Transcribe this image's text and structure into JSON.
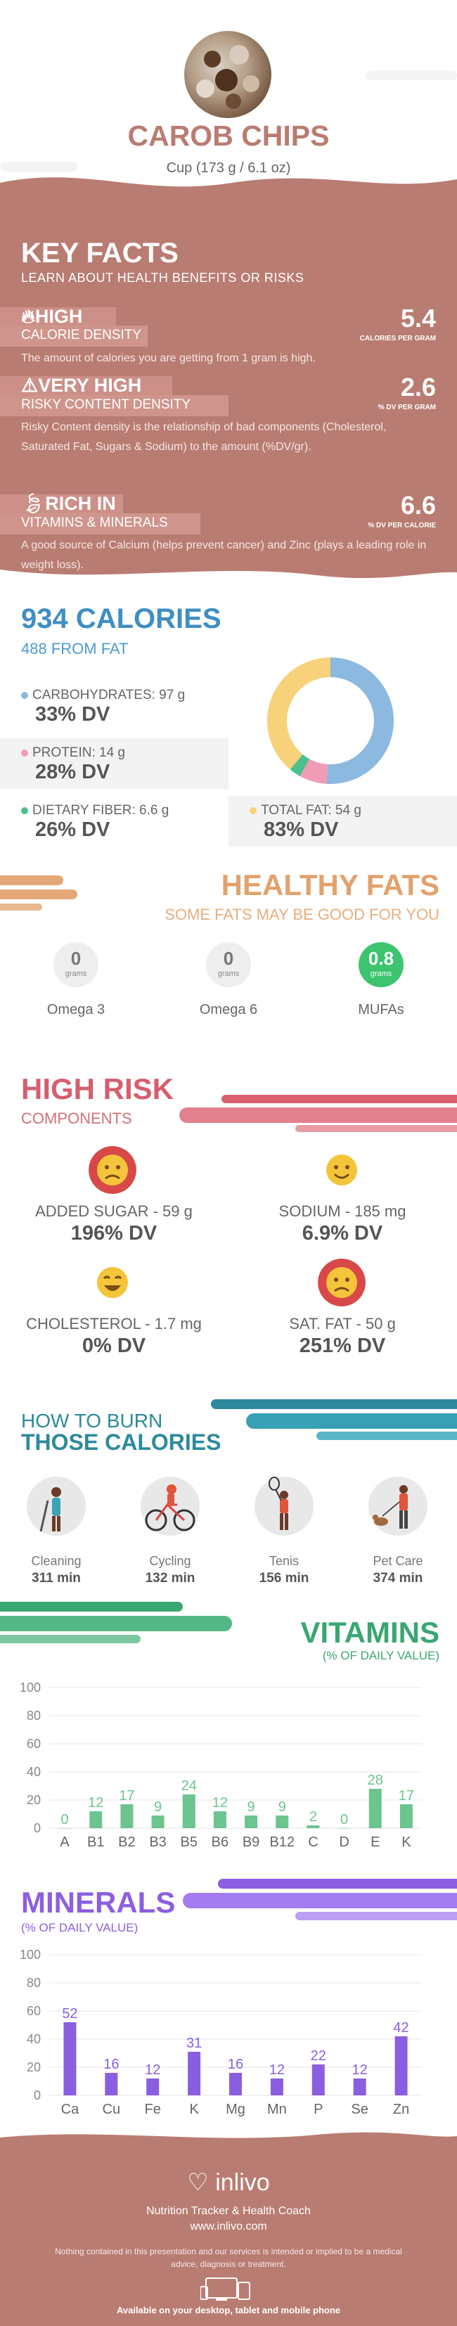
{
  "header": {
    "title": "CAROB CHIPS",
    "serving": "Cup (173 g / 6.1 oz)"
  },
  "key_facts": {
    "title": "KEY FACTS",
    "subtitle": "LEARN ABOUT HEALTH BENEFITS OR RISKS",
    "facts": [
      {
        "label": "HIGH",
        "sub": "CALORIE DENSITY",
        "value": "5.4",
        "unit": "CALORIES PER GRAM",
        "desc": "The amount of calories you are getting from 1 gram is high.",
        "icon": "flame-icon"
      },
      {
        "label": "VERY HIGH",
        "sub": "RISKY CONTENT DENSITY",
        "value": "2.6",
        "unit": "% DV PER GRAM",
        "desc": "Risky Content density is the relationship of bad components (Cholesterol, Saturated Fat, Sugars & Sodium) to the amount (%DV/gr).",
        "icon": "warning-icon"
      },
      {
        "label": "RICH  IN",
        "sub": "VITAMINS & MINERALS",
        "value": "6.6",
        "unit": "% DV PER CALORIE",
        "desc": "A good source of Calcium (helps prevent cancer) and Zinc (plays a leading role in weight loss).",
        "icon": "leaf-icon"
      }
    ]
  },
  "calories": {
    "title": "934 CALORIES",
    "from_fat": "488 FROM FAT",
    "nutrients": [
      {
        "label": "CARBOHYDRATES: 97 g",
        "dv": "33% DV",
        "color": "#8bb9e0"
      },
      {
        "label": "PROTEIN: 14 g",
        "dv": "28% DV",
        "color": "#f29bb7"
      },
      {
        "label": "DIETARY FIBER: 6.6 g",
        "dv": "26% DV",
        "color": "#4cc08a"
      },
      {
        "label": "TOTAL FAT: 54 g",
        "dv": "83% DV",
        "color": "#f7d27a"
      }
    ]
  },
  "chart_data": [
    {
      "type": "pie",
      "title": "",
      "categories": [
        "Carbohydrates",
        "Protein",
        "Dietary Fiber",
        "Total Fat"
      ],
      "values": [
        51,
        7,
        3,
        39
      ],
      "colors": [
        "#8bb9e0",
        "#f29bb7",
        "#4cc08a",
        "#f7d27a"
      ]
    },
    {
      "type": "bar",
      "title": "VITAMINS",
      "categories": [
        "A",
        "B1",
        "B2",
        "B3",
        "B5",
        "B6",
        "B9",
        "B12",
        "C",
        "D",
        "E",
        "K"
      ],
      "values": [
        0,
        12,
        17,
        9,
        24,
        12,
        9,
        9,
        2,
        0,
        28,
        17
      ],
      "ylim": [
        0,
        100
      ],
      "yticks": [
        0,
        20,
        40,
        60,
        80,
        100
      ],
      "color": "#6cc48f"
    },
    {
      "type": "bar",
      "title": "MINERALS",
      "categories": [
        "Ca",
        "Cu",
        "Fe",
        "K",
        "Mg",
        "Mn",
        "P",
        "Se",
        "Zn"
      ],
      "values": [
        52,
        16,
        12,
        31,
        16,
        12,
        22,
        12,
        42
      ],
      "ylim": [
        0,
        100
      ],
      "yticks": [
        0,
        20,
        40,
        60,
        80,
        100
      ],
      "color": "#8a5ee0"
    }
  ],
  "healthy_fats": {
    "title": "HEALTHY FATS",
    "subtitle": "SOME FATS MAY BE GOOD FOR YOU",
    "items": [
      {
        "value": "0",
        "unit": "grams",
        "name": "Omega 3"
      },
      {
        "value": "0",
        "unit": "grams",
        "name": "Omega 6"
      },
      {
        "value": "0.8",
        "unit": "grams",
        "name": "MUFAs"
      }
    ]
  },
  "high_risk": {
    "title": "HIGH RISK",
    "subtitle": "COMPONENTS",
    "items": [
      {
        "name": "ADDED SUGAR - 59 g",
        "dv": "196% DV",
        "face": "sad"
      },
      {
        "name": "SODIUM - 185 mg",
        "dv": "6.9% DV",
        "face": "happy"
      },
      {
        "name": "CHOLESTEROL - 1.7 mg",
        "dv": "0% DV",
        "face": "grin"
      },
      {
        "name": "SAT. FAT - 50 g",
        "dv": "251% DV",
        "face": "sad"
      }
    ]
  },
  "burn": {
    "title_line1": "HOW TO BURN",
    "title_line2": "THOSE CALORIES",
    "activities": [
      {
        "name": "Cleaning",
        "minutes": "311 min",
        "icon": "cleaning-icon"
      },
      {
        "name": "Cycling",
        "minutes": "132 min",
        "icon": "cycling-icon"
      },
      {
        "name": "Tenis",
        "minutes": "156 min",
        "icon": "tennis-icon"
      },
      {
        "name": "Pet Care",
        "minutes": "374 min",
        "icon": "dog-walking-icon"
      }
    ]
  },
  "vitamins": {
    "title": "VITAMINS",
    "subtitle": "(% OF DAILY VALUE)"
  },
  "minerals": {
    "title": "MINERALS",
    "subtitle": "(% OF DAILY VALUE)"
  },
  "footer": {
    "brand": "inlivo",
    "tagline": "Nutrition Tracker & Health Coach",
    "url": "www.inlivo.com",
    "disclaimer": "Nothing contained in this presentation and our services is intended or implied to be a medical advice, diagnosis or treatment.",
    "availability": "Available on your desktop, tablet and mobile phone"
  }
}
